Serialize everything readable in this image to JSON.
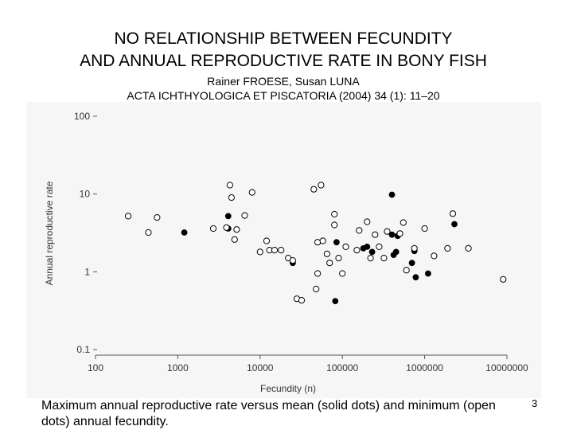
{
  "slide": {
    "title_line1": "NO RELATIONSHIP BETWEEN FECUNDITY",
    "title_line2": "AND ANNUAL REPRODUCTIVE RATE IN BONY FISH",
    "authors": "Rainer FROESE, Susan LUNA",
    "citation": "ACTA ICHTHYOLOGICA ET PISCATORIA (2004) 34 (1): 11–20",
    "caption": "Maximum annual reproductive rate versus mean (solid dots) and minimum (open dots) annual fecundity.",
    "page_number": "3"
  },
  "chart_data": {
    "type": "scatter",
    "xlabel": "Fecundity (n)",
    "ylabel": "Annual reproductive rate",
    "xscale": "log",
    "yscale": "log",
    "xlim": [
      100,
      10000000
    ],
    "ylim": [
      0.1,
      100
    ],
    "xticks": [
      100,
      1000,
      10000,
      100000,
      1000000,
      10000000
    ],
    "xtick_labels": [
      "100",
      "1000",
      "10000",
      "100000",
      "1000000",
      "10000000"
    ],
    "yticks": [
      100,
      10,
      1,
      0.1
    ],
    "ytick_labels": [
      "100",
      "10",
      "1",
      "0.1"
    ],
    "series": [
      {
        "style": "solid",
        "color": "#000000",
        "points": [
          [
            1200,
            3.2
          ],
          [
            4100,
            5.2
          ],
          [
            4100,
            3.6
          ],
          [
            25000,
            1.3
          ],
          [
            82000,
            0.42
          ],
          [
            85000,
            2.4
          ],
          [
            180000,
            2.0
          ],
          [
            200000,
            2.1
          ],
          [
            230000,
            1.8
          ],
          [
            400000,
            9.8
          ],
          [
            400000,
            3.0
          ],
          [
            420000,
            1.65
          ],
          [
            450000,
            1.8
          ],
          [
            470000,
            2.9
          ],
          [
            700000,
            1.3
          ],
          [
            750000,
            1.85
          ],
          [
            780000,
            0.85
          ],
          [
            1100000,
            0.95
          ],
          [
            2300000,
            4.1
          ]
        ]
      },
      {
        "style": "open",
        "color": "#000000",
        "points": [
          [
            250,
            5.2
          ],
          [
            440,
            3.2
          ],
          [
            560,
            5.0
          ],
          [
            2700,
            3.6
          ],
          [
            3900,
            3.7
          ],
          [
            4300,
            13.0
          ],
          [
            4500,
            9.0
          ],
          [
            4900,
            2.6
          ],
          [
            5200,
            3.5
          ],
          [
            6500,
            5.3
          ],
          [
            8000,
            10.5
          ],
          [
            10000,
            1.8
          ],
          [
            12000,
            2.5
          ],
          [
            13000,
            1.9
          ],
          [
            15000,
            1.9
          ],
          [
            18000,
            1.9
          ],
          [
            22000,
            1.5
          ],
          [
            25000,
            1.4
          ],
          [
            28000,
            0.45
          ],
          [
            32000,
            0.43
          ],
          [
            45000,
            11.5
          ],
          [
            48000,
            0.6
          ],
          [
            50000,
            0.95
          ],
          [
            50000,
            2.4
          ],
          [
            55000,
            13.0
          ],
          [
            58000,
            2.5
          ],
          [
            65000,
            1.7
          ],
          [
            70000,
            1.3
          ],
          [
            80000,
            5.5
          ],
          [
            80000,
            4.0
          ],
          [
            90000,
            1.5
          ],
          [
            100000,
            0.95
          ],
          [
            110000,
            2.1
          ],
          [
            150000,
            1.9
          ],
          [
            160000,
            3.4
          ],
          [
            200000,
            4.4
          ],
          [
            220000,
            1.5
          ],
          [
            250000,
            3.0
          ],
          [
            280000,
            2.1
          ],
          [
            320000,
            1.5
          ],
          [
            350000,
            3.3
          ],
          [
            500000,
            3.1
          ],
          [
            550000,
            4.3
          ],
          [
            600000,
            1.05
          ],
          [
            750000,
            2.0
          ],
          [
            1000000,
            3.6
          ],
          [
            1300000,
            1.6
          ],
          [
            1900000,
            2.0
          ],
          [
            2200000,
            5.6
          ],
          [
            3400000,
            2.0
          ],
          [
            9000000,
            0.8
          ]
        ]
      }
    ]
  }
}
